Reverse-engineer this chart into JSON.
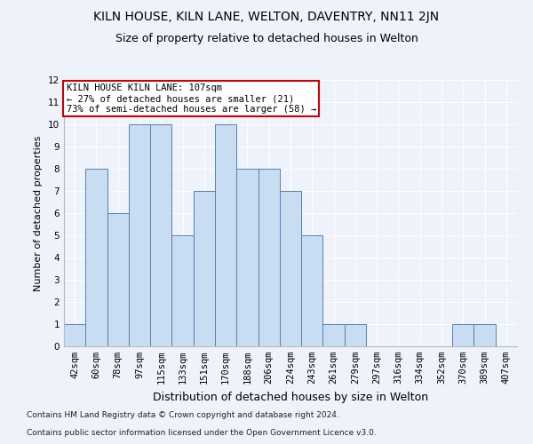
{
  "title1": "KILN HOUSE, KILN LANE, WELTON, DAVENTRY, NN11 2JN",
  "title2": "Size of property relative to detached houses in Welton",
  "xlabel": "Distribution of detached houses by size in Welton",
  "ylabel": "Number of detached properties",
  "categories": [
    "42sqm",
    "60sqm",
    "78sqm",
    "97sqm",
    "115sqm",
    "133sqm",
    "151sqm",
    "170sqm",
    "188sqm",
    "206sqm",
    "224sqm",
    "243sqm",
    "261sqm",
    "279sqm",
    "297sqm",
    "316sqm",
    "334sqm",
    "352sqm",
    "370sqm",
    "389sqm",
    "407sqm"
  ],
  "values": [
    1,
    8,
    6,
    10,
    10,
    5,
    7,
    10,
    8,
    8,
    7,
    5,
    1,
    1,
    0,
    0,
    0,
    0,
    1,
    1,
    0
  ],
  "bar_color": "#c9ddf2",
  "bar_edge_color": "#5580b0",
  "ylim": [
    0,
    12
  ],
  "yticks": [
    0,
    1,
    2,
    3,
    4,
    5,
    6,
    7,
    8,
    9,
    10,
    11,
    12
  ],
  "annotation_box_text": "KILN HOUSE KILN LANE: 107sqm\n← 27% of detached houses are smaller (21)\n73% of semi-detached houses are larger (58) →",
  "annotation_box_color": "#ffffff",
  "annotation_box_edge_color": "#cc0000",
  "footer1": "Contains HM Land Registry data © Crown copyright and database right 2024.",
  "footer2": "Contains public sector information licensed under the Open Government Licence v3.0.",
  "background_color": "#eef2fa",
  "grid_color": "#ffffff",
  "title1_fontsize": 10,
  "title2_fontsize": 9,
  "xlabel_fontsize": 9,
  "ylabel_fontsize": 8,
  "tick_fontsize": 7.5,
  "annotation_fontsize": 7.5,
  "footer_fontsize": 6.5
}
